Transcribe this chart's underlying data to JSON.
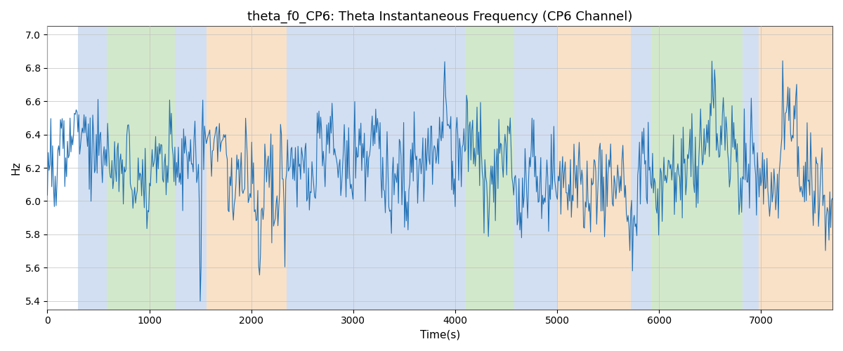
{
  "title": "theta_f0_CP6: Theta Instantaneous Frequency (CP6 Channel)",
  "xlabel": "Time(s)",
  "ylabel": "Hz",
  "ylim": [
    5.35,
    7.05
  ],
  "xlim": [
    0,
    7700
  ],
  "line_color": "#2171b5",
  "line_width": 0.8,
  "bg_color": "#ffffff",
  "grid_color": "#c0c0c0",
  "title_fontsize": 13,
  "label_fontsize": 11,
  "bands": [
    {
      "xmin": 300,
      "xmax": 580,
      "color": "#aec6e8",
      "alpha": 0.55
    },
    {
      "xmin": 580,
      "xmax": 1250,
      "color": "#aed6a0",
      "alpha": 0.55
    },
    {
      "xmin": 1250,
      "xmax": 1560,
      "color": "#aec6e8",
      "alpha": 0.55
    },
    {
      "xmin": 1560,
      "xmax": 2350,
      "color": "#f5c99a",
      "alpha": 0.55
    },
    {
      "xmin": 2350,
      "xmax": 4100,
      "color": "#aec6e8",
      "alpha": 0.55
    },
    {
      "xmin": 4100,
      "xmax": 4580,
      "color": "#aed6a0",
      "alpha": 0.55
    },
    {
      "xmin": 4580,
      "xmax": 5000,
      "color": "#aec6e8",
      "alpha": 0.55
    },
    {
      "xmin": 5000,
      "xmax": 5720,
      "color": "#f5c99a",
      "alpha": 0.55
    },
    {
      "xmin": 5720,
      "xmax": 5920,
      "color": "#aec6e8",
      "alpha": 0.55
    },
    {
      "xmin": 5920,
      "xmax": 6820,
      "color": "#aed6a0",
      "alpha": 0.55
    },
    {
      "xmin": 6820,
      "xmax": 6980,
      "color": "#aec6e8",
      "alpha": 0.55
    },
    {
      "xmin": 6980,
      "xmax": 7700,
      "color": "#f5c99a",
      "alpha": 0.55
    }
  ],
  "seed": 42,
  "n_points": 900,
  "base_freq": 6.22,
  "xticks": [
    0,
    1000,
    2000,
    3000,
    4000,
    5000,
    6000,
    7000
  ],
  "yticks": [
    5.4,
    5.6,
    5.8,
    6.0,
    6.2,
    6.4,
    6.6,
    6.8,
    7.0
  ]
}
